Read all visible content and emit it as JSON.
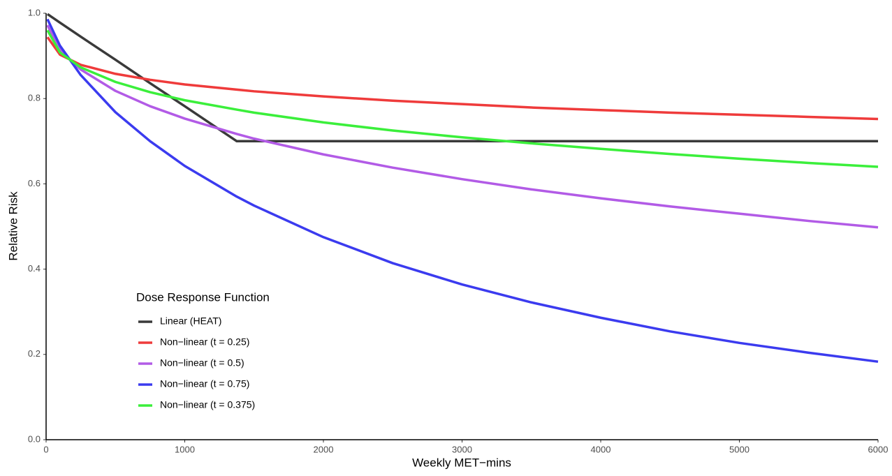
{
  "chart_data": {
    "type": "line",
    "x_label": "Weekly MET−mins",
    "y_label": "Relative Risk",
    "legend_title": "Dose Response Function",
    "legend_position": "lower left",
    "x": [
      10,
      100,
      250,
      500,
      750,
      1000,
      1375,
      1500,
      2000,
      2500,
      3000,
      3500,
      4000,
      4500,
      5000,
      5500,
      6000
    ],
    "series": [
      {
        "name": "Linear (HEAT)",
        "color": "#3a3a3a",
        "values": [
          0.998,
          0.978,
          0.945,
          0.891,
          0.836,
          0.782,
          0.7,
          0.7,
          0.7,
          0.7,
          0.7,
          0.7,
          0.7,
          0.7,
          0.7,
          0.7,
          0.7
        ]
      },
      {
        "name": "Non−linear (t = 0.25)",
        "color": "#ef3b3b",
        "values": [
          0.944,
          0.903,
          0.879,
          0.858,
          0.844,
          0.833,
          0.821,
          0.817,
          0.805,
          0.795,
          0.787,
          0.779,
          0.773,
          0.767,
          0.762,
          0.757,
          0.752
        ]
      },
      {
        "name": "Non−linear (t = 0.5)",
        "color": "#b25be6",
        "values": [
          0.972,
          0.914,
          0.868,
          0.818,
          0.782,
          0.753,
          0.717,
          0.706,
          0.669,
          0.638,
          0.611,
          0.587,
          0.566,
          0.547,
          0.53,
          0.513,
          0.498
        ]
      },
      {
        "name": "Non−linear (t = 0.75)",
        "color": "#3b3bef",
        "values": [
          0.986,
          0.924,
          0.855,
          0.768,
          0.7,
          0.642,
          0.57,
          0.549,
          0.475,
          0.414,
          0.364,
          0.322,
          0.286,
          0.254,
          0.227,
          0.204,
          0.183
        ]
      },
      {
        "name": "Non−linear (t = 0.375)",
        "color": "#3bef3b",
        "values": [
          0.96,
          0.908,
          0.873,
          0.839,
          0.815,
          0.796,
          0.774,
          0.767,
          0.744,
          0.725,
          0.709,
          0.695,
          0.682,
          0.67,
          0.659,
          0.649,
          0.64
        ]
      }
    ],
    "xlim": [
      0,
      6000
    ],
    "xticks": [
      0,
      1000,
      2000,
      3000,
      4000,
      5000,
      6000
    ],
    "ylim": [
      0,
      1
    ],
    "yticks": [
      {
        "value": 0,
        "label": "0.0"
      },
      0.2,
      0.4,
      0.6,
      0.8,
      {
        "value": 1,
        "label": "1.0"
      }
    ],
    "grid": false
  }
}
